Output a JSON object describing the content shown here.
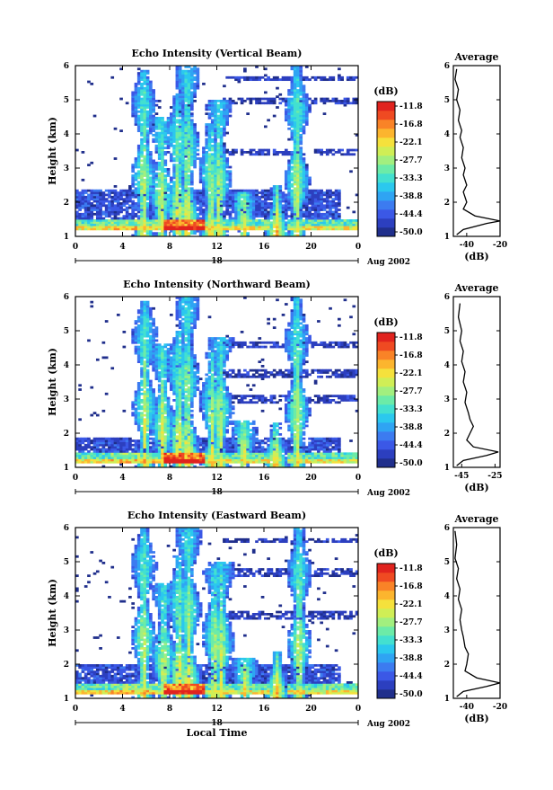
{
  "chart_data": [
    {
      "type": "heatmap",
      "title": "Echo Intensity (Vertical Beam)",
      "ylabel": "Height (km)",
      "xlabel": "",
      "x_ticks": [
        "0",
        "4",
        "8",
        "12",
        "16",
        "20",
        "0"
      ],
      "y_ticks": [
        "1",
        "2",
        "3",
        "4",
        "5",
        "6"
      ],
      "day_label": "18",
      "date_label": "Aug 2002",
      "xlim": [
        0,
        24
      ],
      "ylim": [
        1,
        6
      ],
      "surface_band_km": [
        1.2,
        1.5
      ],
      "low_layer_km": [
        1.5,
        2.4
      ],
      "upper_layers_km": [
        [
          3.35,
          3.55
        ],
        [
          4.85,
          5.05
        ],
        [
          5.55,
          5.7
        ]
      ],
      "plumes": [
        {
          "hour": 5.8,
          "top_km": 5.9
        },
        {
          "hour": 7.3,
          "top_km": 4.5
        },
        {
          "hour": 8.7,
          "top_km": 5.2
        },
        {
          "hour": 9.5,
          "top_km": 6.0
        },
        {
          "hour": 11.5,
          "top_km": 4.3
        },
        {
          "hour": 12.2,
          "top_km": 5.0
        },
        {
          "hour": 14.3,
          "top_km": 2.3
        },
        {
          "hour": 17.1,
          "top_km": 2.5
        },
        {
          "hour": 18.8,
          "top_km": 6.0
        }
      ],
      "colorbar": {
        "unit": "(dB)",
        "labels": [
          "-11.8",
          "-16.8",
          "-22.1",
          "-27.7",
          "-33.3",
          "-38.8",
          "-44.4",
          "-50.0"
        ]
      },
      "average": {
        "title": "Average",
        "xlabel": "(dB)",
        "x_ticks": [
          "-40",
          "-20"
        ],
        "xlim": [
          -48,
          -20
        ],
        "profile": [
          [
            -46,
            1.05
          ],
          [
            -42,
            1.2
          ],
          [
            -28,
            1.38
          ],
          [
            -20,
            1.45
          ],
          [
            -35,
            1.6
          ],
          [
            -42,
            1.8
          ],
          [
            -40,
            2.0
          ],
          [
            -42,
            2.3
          ],
          [
            -40,
            2.5
          ],
          [
            -42,
            2.8
          ],
          [
            -41,
            3.0
          ],
          [
            -43,
            3.3
          ],
          [
            -42,
            3.6
          ],
          [
            -44,
            3.9
          ],
          [
            -43,
            4.1
          ],
          [
            -45,
            4.4
          ],
          [
            -44,
            4.7
          ],
          [
            -46,
            5.0
          ],
          [
            -45,
            5.3
          ],
          [
            -47,
            5.6
          ],
          [
            -46,
            5.9
          ]
        ]
      }
    },
    {
      "type": "heatmap",
      "title": "Echo Intensity (Northward Beam)",
      "ylabel": "Height (km)",
      "xlabel": "",
      "x_ticks": [
        "0",
        "4",
        "8",
        "12",
        "16",
        "20",
        "0"
      ],
      "y_ticks": [
        "1",
        "2",
        "3",
        "4",
        "5",
        "6"
      ],
      "day_label": "18",
      "date_label": "Aug 2002",
      "xlim": [
        0,
        24
      ],
      "ylim": [
        1,
        6
      ],
      "surface_band_km": [
        1.15,
        1.45
      ],
      "low_layer_km": [
        1.45,
        1.9
      ],
      "upper_layers_km": [
        [
          2.9,
          3.15
        ],
        [
          3.65,
          3.85
        ],
        [
          4.5,
          4.7
        ]
      ],
      "plumes": [
        {
          "hour": 5.9,
          "top_km": 5.9
        },
        {
          "hour": 7.4,
          "top_km": 4.6
        },
        {
          "hour": 8.8,
          "top_km": 5.0
        },
        {
          "hour": 9.5,
          "top_km": 6.0
        },
        {
          "hour": 11.6,
          "top_km": 4.4
        },
        {
          "hour": 12.3,
          "top_km": 4.8
        },
        {
          "hour": 14.3,
          "top_km": 2.4
        },
        {
          "hour": 17.0,
          "top_km": 2.3
        },
        {
          "hour": 18.8,
          "top_km": 6.0
        }
      ],
      "colorbar": {
        "unit": "(dB)",
        "labels": [
          "-11.8",
          "-16.8",
          "-22.1",
          "-27.7",
          "-33.3",
          "-38.8",
          "-44.4",
          "-50.0"
        ]
      },
      "average": {
        "title": "Average",
        "xlabel": "(dB)",
        "x_ticks": [
          "-45",
          "-25"
        ],
        "xlim": [
          -50,
          -22
        ],
        "profile": [
          [
            -48,
            1.05
          ],
          [
            -44,
            1.2
          ],
          [
            -30,
            1.35
          ],
          [
            -23,
            1.45
          ],
          [
            -38,
            1.6
          ],
          [
            -42,
            1.8
          ],
          [
            -40,
            2.0
          ],
          [
            -38,
            2.2
          ],
          [
            -40,
            2.4
          ],
          [
            -41,
            2.6
          ],
          [
            -43,
            2.9
          ],
          [
            -42,
            3.2
          ],
          [
            -44,
            3.5
          ],
          [
            -43,
            3.8
          ],
          [
            -45,
            4.1
          ],
          [
            -44,
            4.4
          ],
          [
            -46,
            4.7
          ],
          [
            -45,
            5.0
          ],
          [
            -47,
            5.4
          ],
          [
            -46,
            5.8
          ]
        ]
      }
    },
    {
      "type": "heatmap",
      "title": "Echo Intensity (Eastward Beam)",
      "ylabel": "Height (km)",
      "xlabel": "Local Time",
      "x_ticks": [
        "0",
        "4",
        "8",
        "12",
        "16",
        "20",
        "0"
      ],
      "y_ticks": [
        "1",
        "2",
        "3",
        "4",
        "5",
        "6"
      ],
      "day_label": "18",
      "date_label": "Aug 2002",
      "xlim": [
        0,
        24
      ],
      "ylim": [
        1,
        6
      ],
      "surface_band_km": [
        1.15,
        1.45
      ],
      "low_layer_km": [
        1.45,
        2.0
      ],
      "upper_layers_km": [
        [
          3.3,
          3.55
        ],
        [
          4.55,
          4.8
        ],
        [
          5.55,
          5.7
        ]
      ],
      "plumes": [
        {
          "hour": 5.8,
          "top_km": 6.0
        },
        {
          "hour": 7.5,
          "top_km": 4.4
        },
        {
          "hour": 8.8,
          "top_km": 5.2
        },
        {
          "hour": 9.6,
          "top_km": 6.0
        },
        {
          "hour": 11.8,
          "top_km": 4.8
        },
        {
          "hour": 12.4,
          "top_km": 5.0
        },
        {
          "hour": 14.4,
          "top_km": 2.2
        },
        {
          "hour": 17.1,
          "top_km": 2.4
        },
        {
          "hour": 19.0,
          "top_km": 6.0
        }
      ],
      "colorbar": {
        "unit": "(dB)",
        "labels": [
          "-11.8",
          "-16.8",
          "-22.1",
          "-27.7",
          "-33.3",
          "-38.8",
          "-44.4",
          "-50.0"
        ]
      },
      "average": {
        "title": "Average",
        "xlabel": "(dB)",
        "x_ticks": [
          "-40",
          "-20"
        ],
        "xlim": [
          -48,
          -20
        ],
        "profile": [
          [
            -46,
            1.05
          ],
          [
            -42,
            1.2
          ],
          [
            -28,
            1.35
          ],
          [
            -20,
            1.45
          ],
          [
            -34,
            1.6
          ],
          [
            -41,
            1.8
          ],
          [
            -40,
            2.0
          ],
          [
            -39,
            2.3
          ],
          [
            -41,
            2.5
          ],
          [
            -42,
            2.8
          ],
          [
            -43,
            3.0
          ],
          [
            -44,
            3.3
          ],
          [
            -43,
            3.6
          ],
          [
            -45,
            3.9
          ],
          [
            -44,
            4.2
          ],
          [
            -46,
            4.5
          ],
          [
            -45,
            4.8
          ],
          [
            -47,
            5.1
          ],
          [
            -46,
            5.5
          ],
          [
            -47,
            5.9
          ]
        ]
      }
    }
  ]
}
